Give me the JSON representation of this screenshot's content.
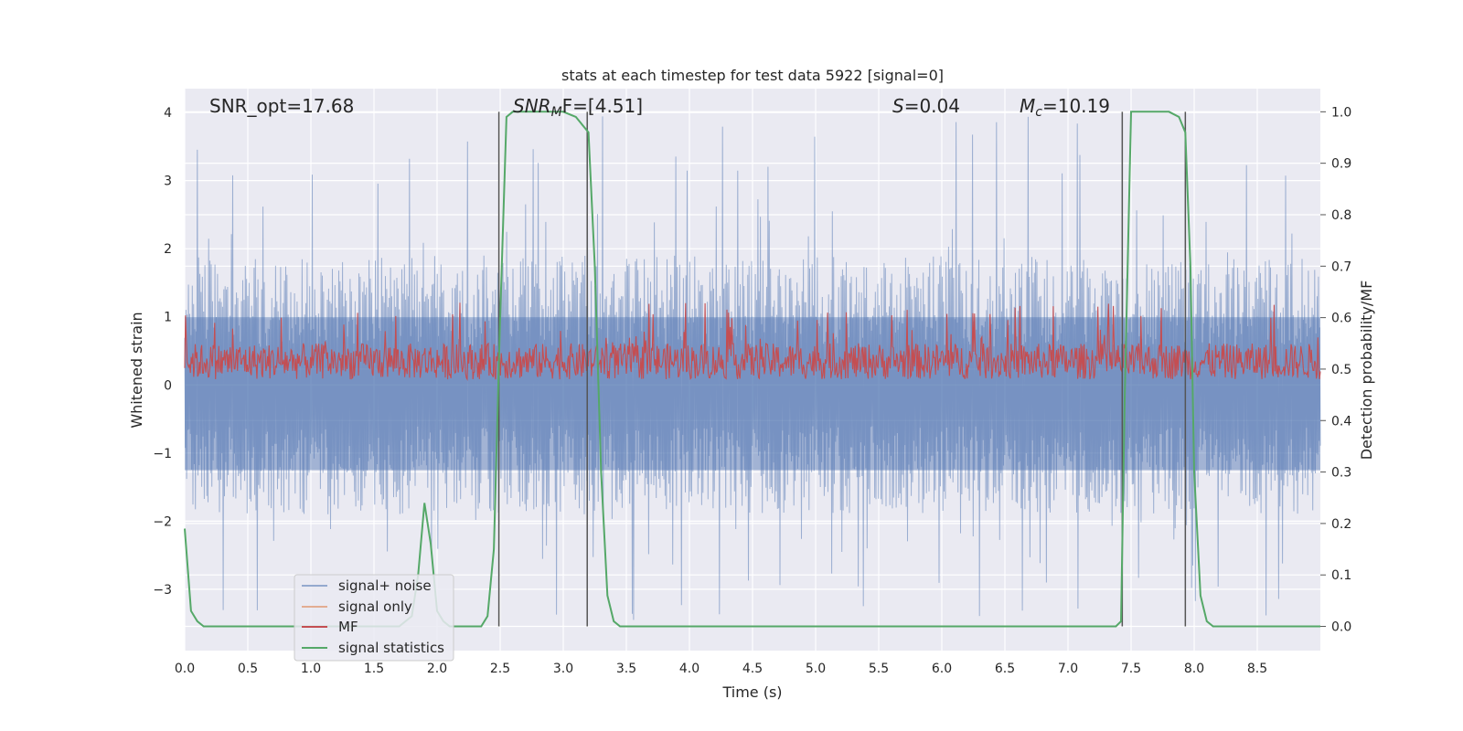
{
  "chart_data": {
    "type": "line",
    "title": "stats at each timestep for test data 5922 [signal=0]",
    "xlabel": "Time (s)",
    "ylabel": "Whitened strain",
    "y2label": "Detection probability/MF",
    "xlim": [
      0.0,
      9.0
    ],
    "ylim": [
      -3.9,
      4.35
    ],
    "y2lim": [
      -0.047,
      1.045
    ],
    "x_ticks": [
      0.0,
      0.5,
      1.0,
      1.5,
      2.0,
      2.5,
      3.0,
      3.5,
      4.0,
      4.5,
      5.0,
      5.5,
      6.0,
      6.5,
      7.0,
      7.5,
      8.0,
      8.5
    ],
    "x_tick_labels": [
      "0.0",
      "0.5",
      "1.0",
      "1.5",
      "2.0",
      "2.5",
      "3.0",
      "3.5",
      "4.0",
      "4.5",
      "5.0",
      "5.5",
      "6.0",
      "6.5",
      "7.0",
      "7.5",
      "8.0",
      "8.5"
    ],
    "y_ticks": [
      4,
      3,
      2,
      1,
      0,
      -1,
      -2,
      -3
    ],
    "y_tick_labels": [
      "4",
      "3",
      "2",
      "1",
      "0",
      "−1",
      "−2",
      "−3"
    ],
    "y2_ticks": [
      1.0,
      0.9,
      0.8,
      0.7,
      0.6,
      0.5,
      0.4,
      0.3,
      0.2,
      0.1,
      0.0
    ],
    "y2_tick_labels": [
      "1.0",
      "0.9",
      "0.8",
      "0.7",
      "0.6",
      "0.5",
      "0.4",
      "0.3",
      "0.2",
      "0.1",
      "0.0"
    ],
    "annotations": {
      "snr_opt": "SNR_opt=17.68",
      "snr_mf_sym": "SNR",
      "snr_mf_sub": "M",
      "snr_mf_tail": "F=[4.51]",
      "s_sym": "S",
      "s_val": "=0.04",
      "mc_sym": "M",
      "mc_sub": "c",
      "mc_val": "=10.19"
    },
    "vertical_markers": [
      2.49,
      3.19,
      7.43,
      7.93
    ],
    "series": [
      {
        "name": "signal+ noise",
        "color": "#4c72b0",
        "noise_envelope": {
          "typical_max": 1.9,
          "typical_min": -1.9,
          "peak_max": 4.0,
          "peak_min": -3.45
        }
      },
      {
        "name": "signal only",
        "color": "#dd8452"
      },
      {
        "name": "MF",
        "color": "#c44e52",
        "axis": "right",
        "band": {
          "low": 0.48,
          "high": 0.55,
          "peak": 0.63
        }
      },
      {
        "name": "signal statistics",
        "color": "#55a868",
        "axis": "right",
        "x": [
          0.0,
          0.05,
          0.1,
          0.15,
          0.3,
          1.7,
          1.8,
          1.85,
          1.9,
          1.95,
          2.0,
          2.05,
          2.1,
          2.2,
          2.35,
          2.4,
          2.45,
          2.5,
          2.55,
          2.6,
          2.7,
          3.0,
          3.1,
          3.2,
          3.25,
          3.3,
          3.35,
          3.4,
          3.45,
          3.5,
          7.38,
          7.42,
          7.45,
          7.5,
          7.55,
          7.6,
          7.8,
          7.88,
          7.93,
          7.97,
          8.0,
          8.05,
          8.1,
          8.15,
          8.25,
          9.0
        ],
        "y": [
          0.19,
          0.03,
          0.01,
          0.0,
          0.0,
          0.0,
          0.02,
          0.1,
          0.24,
          0.16,
          0.03,
          0.01,
          0.0,
          0.0,
          0.0,
          0.02,
          0.15,
          0.6,
          0.99,
          1.0,
          1.0,
          1.0,
          0.99,
          0.96,
          0.7,
          0.3,
          0.06,
          0.01,
          0.0,
          0.0,
          0.0,
          0.01,
          0.45,
          1.0,
          1.0,
          1.0,
          1.0,
          0.99,
          0.96,
          0.7,
          0.3,
          0.06,
          0.01,
          0.0,
          0.0,
          0.0
        ]
      }
    ],
    "legend_location": "lower-left"
  }
}
